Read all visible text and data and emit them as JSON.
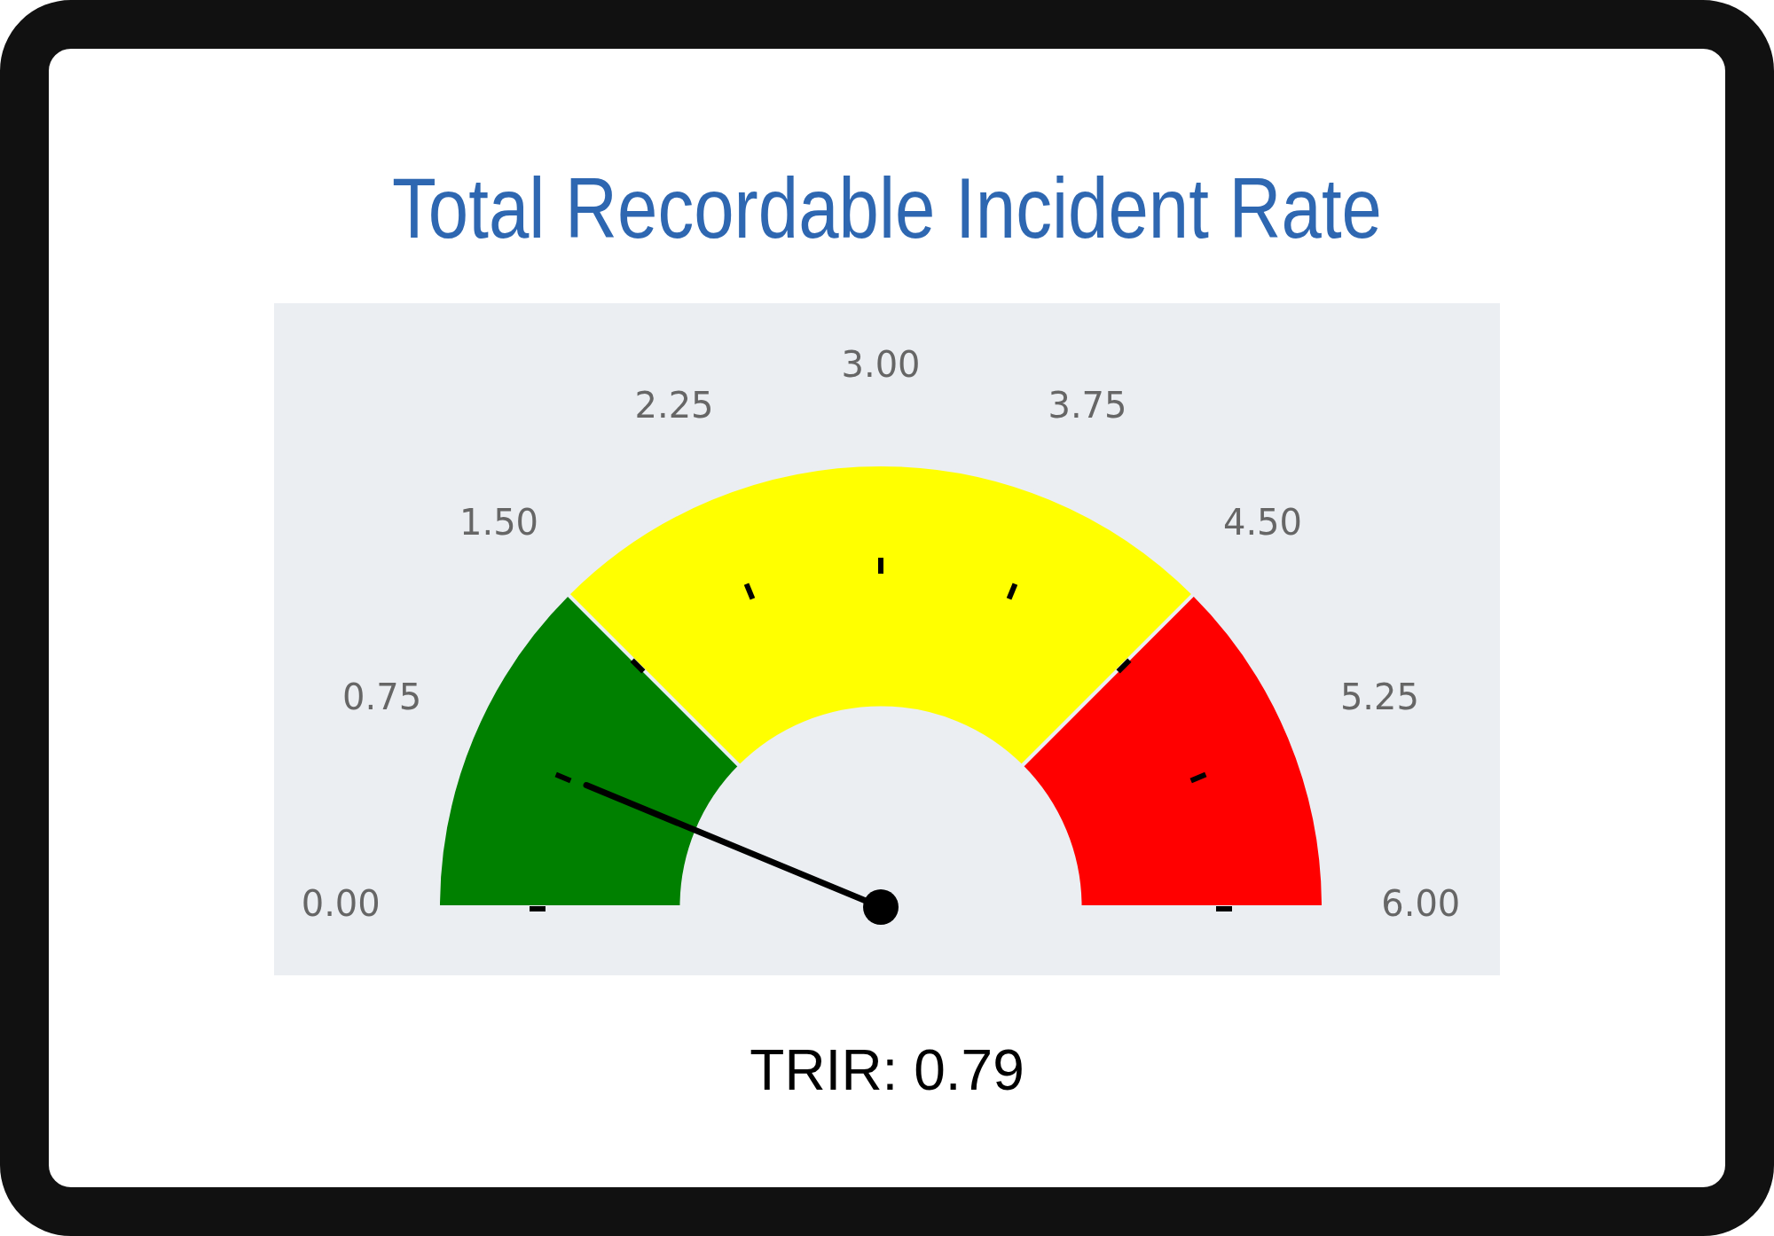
{
  "chart_data": {
    "type": "donut",
    "title": "Total Recordable Incident Rate",
    "categories": [
      null,
      null,
      null
    ],
    "values": [
      25,
      50,
      25
    ],
    "colors": [
      "#008000",
      "#ffff00",
      "#ff0000"
    ],
    "needle": null,
    "legend": false,
    "annotations": [
      "0.00",
      "0.75",
      "1.50",
      "2.25",
      "3.00",
      "3.75",
      "4.50",
      "5.25",
      "6.00",
      "TRIR: 0.79"
    ]
  }
}
